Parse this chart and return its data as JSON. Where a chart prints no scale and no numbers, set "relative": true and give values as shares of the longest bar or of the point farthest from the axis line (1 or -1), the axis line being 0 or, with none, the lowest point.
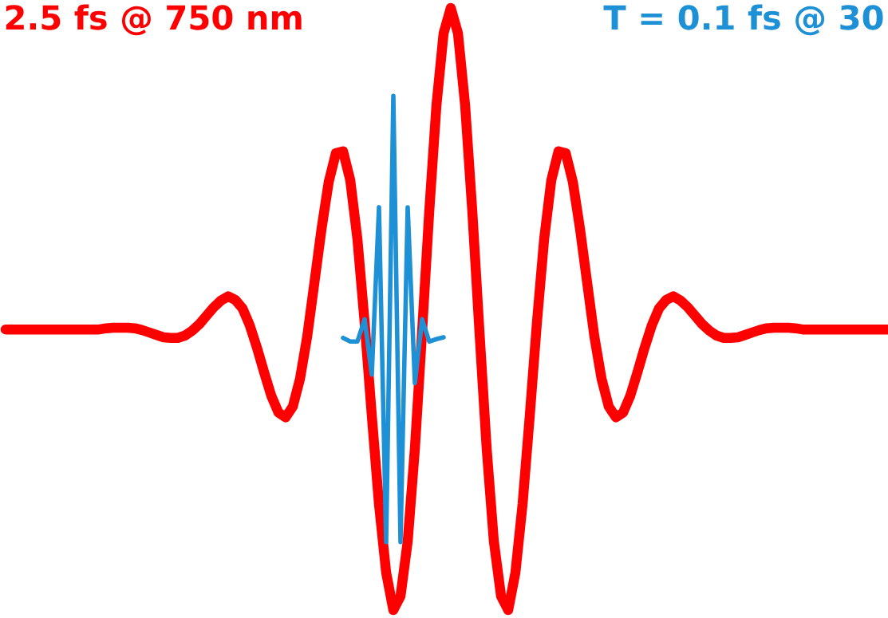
{
  "chart_data": {
    "type": "line",
    "relative": true,
    "categories": [
      null,
      null,
      null,
      null,
      null,
      null,
      null,
      null,
      null,
      null,
      null,
      null,
      null,
      null,
      null,
      null,
      null,
      null,
      null,
      null,
      null,
      null,
      null,
      null,
      null,
      null,
      null,
      null,
      null,
      null,
      null,
      null,
      null,
      null,
      null,
      null,
      null,
      null,
      null,
      null,
      null,
      null,
      null,
      null,
      null,
      null,
      null,
      null,
      null,
      null,
      null,
      null,
      null,
      null,
      null,
      null,
      null,
      null,
      null,
      null,
      null,
      null,
      null,
      null,
      null,
      null,
      null,
      null,
      null,
      null,
      null,
      null,
      null,
      null,
      null,
      null,
      null,
      null,
      null,
      null,
      null,
      null,
      null,
      null,
      null,
      null,
      null,
      null,
      null,
      null,
      null,
      null,
      null,
      null,
      null,
      null,
      null,
      null,
      null,
      null,
      null,
      null,
      null,
      null,
      null,
      null,
      null,
      null,
      null,
      null,
      null,
      null,
      null,
      null,
      null,
      null,
      null,
      null,
      null,
      null,
      null,
      null,
      null,
      null
    ],
    "series": [
      {
        "color": "#ff0000",
        "values": [
          0.466,
          0.466,
          0.466,
          0.466,
          0.466,
          0.466,
          0.466,
          0.466,
          0.466,
          0.466,
          0.466,
          0.466,
          0.466,
          0.466,
          0.468,
          0.469,
          0.469,
          0.469,
          0.468,
          0.465,
          0.461,
          0.457,
          0.453,
          0.452,
          0.452,
          0.456,
          0.464,
          0.475,
          0.489,
          0.503,
          0.514,
          0.521,
          0.515,
          0.501,
          0.473,
          0.436,
          0.395,
          0.356,
          0.328,
          0.32,
          0.338,
          0.384,
          0.454,
          0.543,
          0.633,
          0.711,
          0.759,
          0.762,
          0.714,
          0.616,
          0.478,
          0.323,
          0.176,
          0.062,
          0.0,
          0.023,
          0.114,
          0.268,
          0.461,
          0.662,
          0.838,
          0.958,
          1.0,
          0.958,
          0.838,
          0.662,
          0.461,
          0.268,
          0.114,
          0.023,
          0.0,
          0.062,
          0.176,
          0.323,
          0.478,
          0.616,
          0.714,
          0.762,
          0.759,
          0.711,
          0.633,
          0.543,
          0.454,
          0.384,
          0.338,
          0.32,
          0.328,
          0.356,
          0.395,
          0.436,
          0.473,
          0.501,
          0.515,
          0.521,
          0.514,
          0.503,
          0.489,
          0.475,
          0.464,
          0.456,
          0.452,
          0.452,
          0.453,
          0.457,
          0.461,
          0.465,
          0.468,
          0.469,
          0.469,
          0.469,
          0.468,
          0.466,
          0.466,
          0.466,
          0.466,
          0.466,
          0.466,
          0.466,
          0.466,
          0.466,
          0.466,
          0.466,
          0.466,
          0.466
        ]
      },
      {
        "color": "#1e90d6",
        "values": [
          null,
          null,
          null,
          null,
          null,
          null,
          null,
          null,
          null,
          null,
          null,
          null,
          null,
          null,
          null,
          null,
          null,
          null,
          null,
          null,
          null,
          null,
          null,
          null,
          null,
          null,
          null,
          null,
          null,
          null,
          null,
          null,
          null,
          null,
          null,
          null,
          null,
          null,
          null,
          null,
          null,
          null,
          null,
          null,
          null,
          null,
          null,
          0.452,
          0.446,
          0.446,
          0.483,
          0.391,
          0.669,
          0.113,
          0.854,
          0.113,
          0.669,
          0.377,
          0.483,
          0.446,
          0.45,
          0.453,
          null,
          null,
          null,
          null,
          null,
          null,
          null,
          null,
          null,
          null,
          null,
          null,
          null,
          null,
          null,
          null,
          null,
          null,
          null,
          null,
          null,
          null,
          null,
          null,
          null,
          null,
          null,
          null,
          null,
          null,
          null,
          null,
          null,
          null,
          null,
          null,
          null,
          null,
          null,
          null,
          null,
          null,
          null,
          null,
          null,
          null,
          null,
          null,
          null,
          null,
          null,
          null,
          null,
          null,
          null,
          null,
          null,
          null,
          null,
          null,
          null,
          null
        ]
      }
    ],
    "annotations": [
      "2.5 fs @ 750 nm",
      "T = 0.1 fs @ 30"
    ]
  }
}
